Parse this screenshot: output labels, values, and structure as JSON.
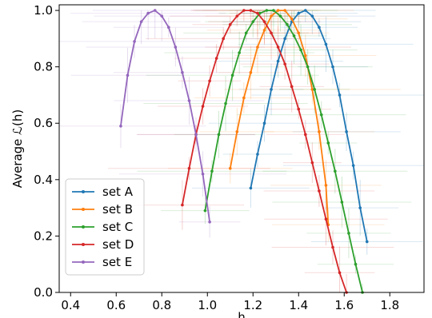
{
  "chart_data": {
    "type": "line",
    "xlabel": "h",
    "ylabel": "Average ℒ(h)",
    "xlim": [
      0.35,
      1.95
    ],
    "ylim": [
      0.0,
      1.02
    ],
    "xticks": [
      0.4,
      0.6,
      0.8,
      1.0,
      1.2,
      1.4,
      1.6,
      1.8
    ],
    "yticks": [
      0.0,
      0.2,
      0.4,
      0.6,
      0.8,
      1.0
    ],
    "xtick_labels": [
      "0.4",
      "0.6",
      "0.8",
      "1.0",
      "1.2",
      "1.4",
      "1.6",
      "1.8"
    ],
    "ytick_labels": [
      "0.0",
      "0.2",
      "0.4",
      "0.6",
      "0.8",
      "1.0"
    ],
    "grid": false,
    "legend_position": "lower-left",
    "error_bars": true,
    "series": [
      {
        "name": "set A",
        "color": "#1f77b4",
        "x": [
          1.19,
          1.22,
          1.25,
          1.28,
          1.31,
          1.34,
          1.37,
          1.4,
          1.43,
          1.46,
          1.49,
          1.52,
          1.55,
          1.58,
          1.61,
          1.64,
          1.67,
          1.7
        ],
        "y": [
          0.37,
          0.49,
          0.6,
          0.72,
          0.82,
          0.9,
          0.96,
          0.99,
          1.0,
          0.98,
          0.94,
          0.88,
          0.8,
          0.7,
          0.57,
          0.45,
          0.3,
          0.18
        ]
      },
      {
        "name": "set B",
        "color": "#ff7f0e",
        "x": [
          1.1,
          1.13,
          1.16,
          1.19,
          1.22,
          1.25,
          1.28,
          1.31,
          1.34,
          1.37,
          1.4,
          1.43,
          1.46,
          1.49,
          1.52,
          1.53
        ],
        "y": [
          0.44,
          0.57,
          0.69,
          0.78,
          0.87,
          0.93,
          0.98,
          1.0,
          1.0,
          0.97,
          0.92,
          0.84,
          0.72,
          0.57,
          0.38,
          0.24
        ]
      },
      {
        "name": "set C",
        "color": "#2ca02c",
        "x": [
          0.99,
          1.02,
          1.05,
          1.08,
          1.11,
          1.14,
          1.17,
          1.2,
          1.23,
          1.26,
          1.29,
          1.32,
          1.35,
          1.38,
          1.41,
          1.44,
          1.47,
          1.5,
          1.53,
          1.56,
          1.59,
          1.62,
          1.65,
          1.68
        ],
        "y": [
          0.29,
          0.43,
          0.56,
          0.67,
          0.77,
          0.85,
          0.92,
          0.96,
          0.99,
          1.0,
          1.0,
          0.98,
          0.95,
          0.91,
          0.86,
          0.8,
          0.72,
          0.63,
          0.53,
          0.43,
          0.32,
          0.21,
          0.1,
          0.0
        ]
      },
      {
        "name": "set D",
        "color": "#d62728",
        "x": [
          0.89,
          0.92,
          0.95,
          0.98,
          1.01,
          1.04,
          1.07,
          1.1,
          1.13,
          1.16,
          1.19,
          1.22,
          1.25,
          1.28,
          1.31,
          1.34,
          1.37,
          1.4,
          1.43,
          1.46,
          1.49,
          1.52,
          1.55,
          1.58,
          1.61
        ],
        "y": [
          0.31,
          0.44,
          0.56,
          0.66,
          0.75,
          0.83,
          0.9,
          0.95,
          0.98,
          1.0,
          1.0,
          0.99,
          0.96,
          0.92,
          0.87,
          0.81,
          0.73,
          0.65,
          0.56,
          0.46,
          0.36,
          0.26,
          0.16,
          0.07,
          0.0
        ]
      },
      {
        "name": "set E",
        "color": "#9467bd",
        "x": [
          0.62,
          0.65,
          0.68,
          0.71,
          0.74,
          0.77,
          0.8,
          0.83,
          0.86,
          0.89,
          0.92,
          0.95,
          0.98,
          1.01
        ],
        "y": [
          0.59,
          0.77,
          0.89,
          0.96,
          0.99,
          1.0,
          0.98,
          0.94,
          0.87,
          0.78,
          0.68,
          0.56,
          0.42,
          0.25
        ]
      }
    ]
  }
}
